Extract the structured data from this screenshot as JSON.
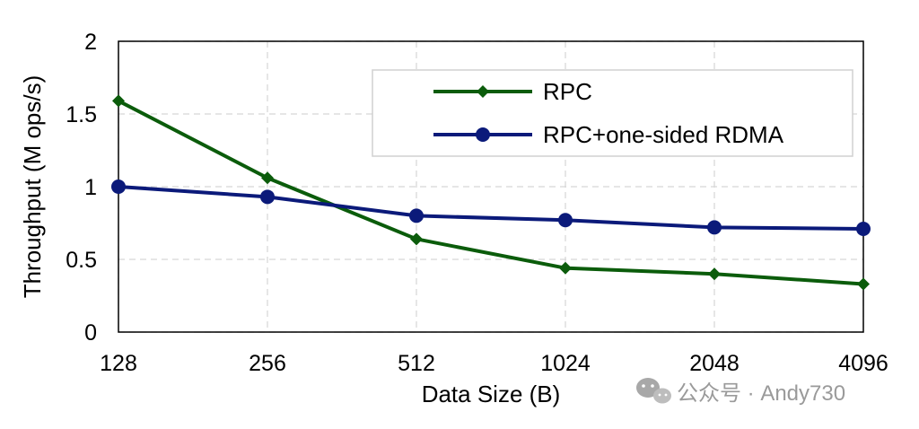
{
  "chart_data": {
    "type": "line",
    "xlabel": "Data Size (B)",
    "ylabel": "Throughput (M ops/s)",
    "categories": [
      "128",
      "256",
      "512",
      "1024",
      "2048",
      "4096"
    ],
    "ylim": [
      0,
      2
    ],
    "yticks": [
      "0",
      "0.5",
      "1",
      "1.5",
      "2"
    ],
    "grid": true,
    "legend_position": "top-right",
    "series": [
      {
        "name": "RPC",
        "marker": "diamond",
        "color": "#0b5c0b",
        "values": [
          1.59,
          1.06,
          0.64,
          0.44,
          0.4,
          0.33
        ]
      },
      {
        "name": "RPC+one-sided RDMA",
        "marker": "circle",
        "color": "#0b1a7a",
        "values": [
          1.0,
          0.93,
          0.8,
          0.77,
          0.72,
          0.71
        ]
      }
    ]
  },
  "watermark": {
    "text": "公众号 · Andy730",
    "icon": "wechat-icon"
  }
}
